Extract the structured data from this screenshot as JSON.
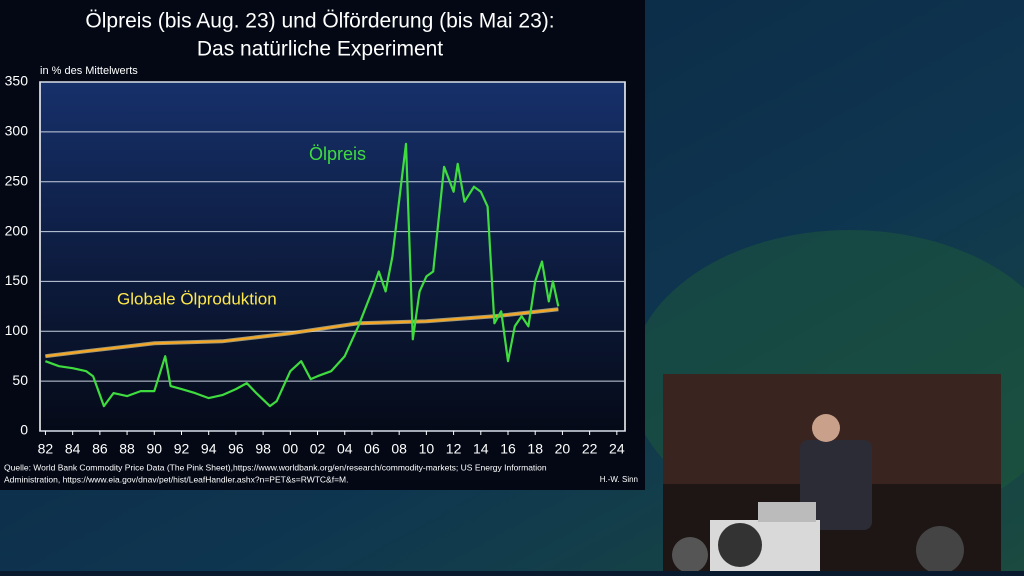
{
  "chart_data": {
    "type": "line",
    "title": "Ölpreis (bis Aug. 23) und Ölförderung (bis Mai 23):",
    "subtitle": "Das natürliche Experiment",
    "y_label": "in % des Mittelwerts",
    "source": [
      "Quelle: World Bank Commodity Price Data (The Pink Sheet),https://www.worldbank.org/en/research/commodity-markets; US Energy Information",
      "Administration, https://www.eia.gov/dnav/pet/hist/LeafHandler.ashx?n=PET&s=RWTC&f=M."
    ],
    "credit": "H.-W. Sinn",
    "xlim": [
      1981.6,
      2024.6
    ],
    "xticks": [
      {
        "value": 1982,
        "label": "82"
      },
      {
        "value": 1984,
        "label": "84"
      },
      {
        "value": 1986,
        "label": "86"
      },
      {
        "value": 1988,
        "label": "88"
      },
      {
        "value": 1990,
        "label": "90"
      },
      {
        "value": 1992,
        "label": "92"
      },
      {
        "value": 1994,
        "label": "94"
      },
      {
        "value": 1996,
        "label": "96"
      },
      {
        "value": 1998,
        "label": "98"
      },
      {
        "value": 2000,
        "label": "00"
      },
      {
        "value": 2002,
        "label": "02"
      },
      {
        "value": 2004,
        "label": "04"
      },
      {
        "value": 2006,
        "label": "06"
      },
      {
        "value": 2008,
        "label": "08"
      },
      {
        "value": 2010,
        "label": "10"
      },
      {
        "value": 2012,
        "label": "12"
      },
      {
        "value": 2014,
        "label": "14"
      },
      {
        "value": 2016,
        "label": "16"
      },
      {
        "value": 2018,
        "label": "18"
      },
      {
        "value": 2020,
        "label": "20"
      },
      {
        "value": 2022,
        "label": "22"
      },
      {
        "value": 2024,
        "label": "24"
      }
    ],
    "ylim": [
      0,
      350
    ],
    "yticks": [
      0,
      50,
      100,
      150,
      200,
      250,
      300,
      350
    ],
    "grid": true,
    "series": [
      {
        "name": "Ölpreis",
        "color": "#3fdc3f",
        "x": [
          1982,
          1983,
          1984,
          1985,
          1985.5,
          1986.3,
          1987,
          1988,
          1989,
          1990,
          1990.8,
          1991.2,
          1992,
          1993,
          1994,
          1995,
          1996,
          1996.8,
          1997.5,
          1998.5,
          1999,
          2000,
          2000.8,
          2001.5,
          2002,
          2003,
          2004,
          2005,
          2006,
          2006.5,
          2007,
          2007.5,
          2008.5,
          2009,
          2009.5,
          2010,
          2010.5,
          2011.3,
          2012,
          2012.3,
          2012.8,
          2013.5,
          2014,
          2014.5,
          2015,
          2015.5,
          2016,
          2016.5,
          2017,
          2017.5,
          2018,
          2018.5,
          2019,
          2019.3,
          2019.7
        ],
        "values": [
          70,
          65,
          63,
          60,
          55,
          25,
          38,
          35,
          40,
          40,
          75,
          45,
          42,
          38,
          33,
          36,
          42,
          48,
          38,
          25,
          30,
          60,
          70,
          52,
          55,
          60,
          75,
          105,
          140,
          160,
          140,
          175,
          288,
          92,
          140,
          155,
          160,
          265,
          240,
          268,
          230,
          245,
          240,
          225,
          108,
          120,
          70,
          105,
          115,
          105,
          150,
          170,
          130,
          150,
          125
        ]
      },
      {
        "name": "Globale Ölproduktion",
        "color": "#f5a623",
        "x": [
          1982,
          1985,
          1990,
          1995,
          2000,
          2005,
          2010,
          2015,
          2019.7
        ],
        "values": [
          75,
          80,
          88,
          90,
          98,
          108,
          110,
          115,
          122
        ]
      }
    ]
  }
}
